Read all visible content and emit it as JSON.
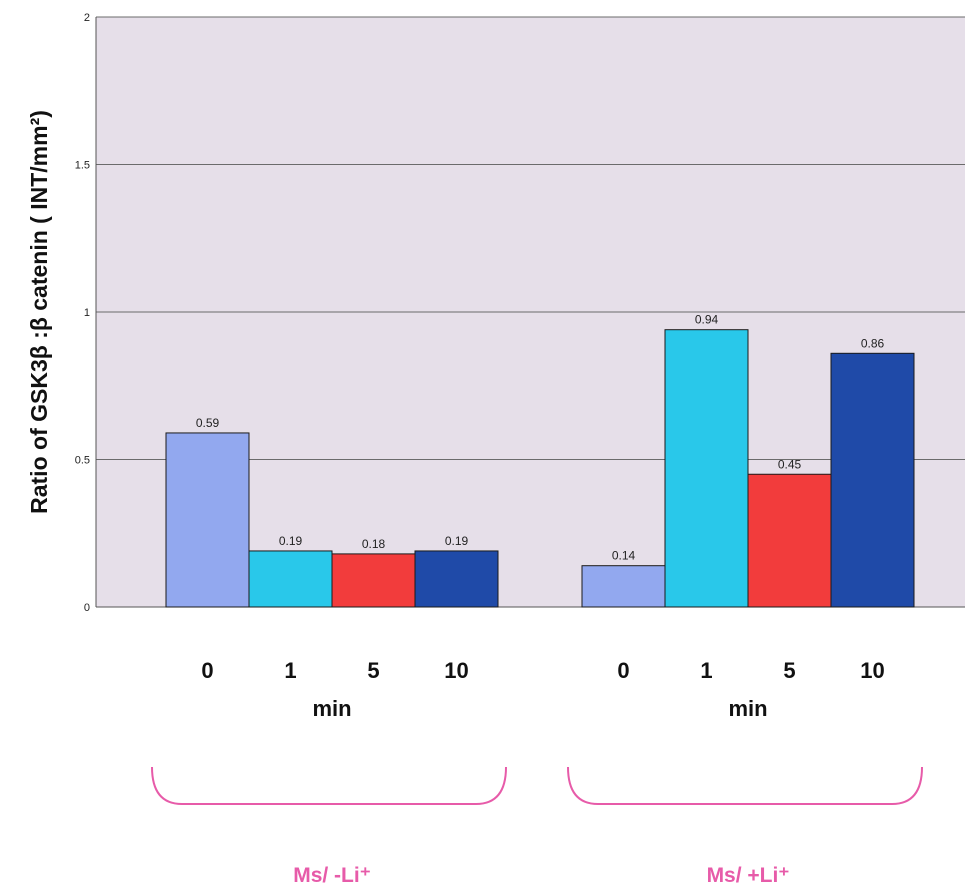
{
  "chart_data": {
    "type": "bar",
    "ylabel": "Ratio of GSK3β :β catenin ( INT/mm²)",
    "ylim": [
      0,
      2
    ],
    "yticks": [
      "0",
      "0.5",
      "1",
      "1.5",
      "2"
    ],
    "grid": true,
    "groups": [
      {
        "name": "Ms/ -Li⁺",
        "unit": "min",
        "categories": [
          "0",
          "1",
          "5",
          "10"
        ],
        "values": [
          0.59,
          0.19,
          0.18,
          0.19
        ],
        "labels": [
          "0.59",
          "0.19",
          "0.18",
          "0.19"
        ]
      },
      {
        "name": "Ms/ +Li⁺",
        "unit": "min",
        "categories": [
          "0",
          "1",
          "5",
          "10"
        ],
        "values": [
          0.14,
          0.94,
          0.45,
          0.86
        ],
        "labels": [
          "0.14",
          "0.94",
          "0.45",
          "0.86"
        ]
      }
    ],
    "bar_colors": [
      "#92a8ef",
      "#29c8ea",
      "#f23c3c",
      "#1f4aa8"
    ],
    "plot_background": "#e6dfe9",
    "grid_color": "#6b6b6b",
    "group_label_color": "#e75ba9"
  }
}
